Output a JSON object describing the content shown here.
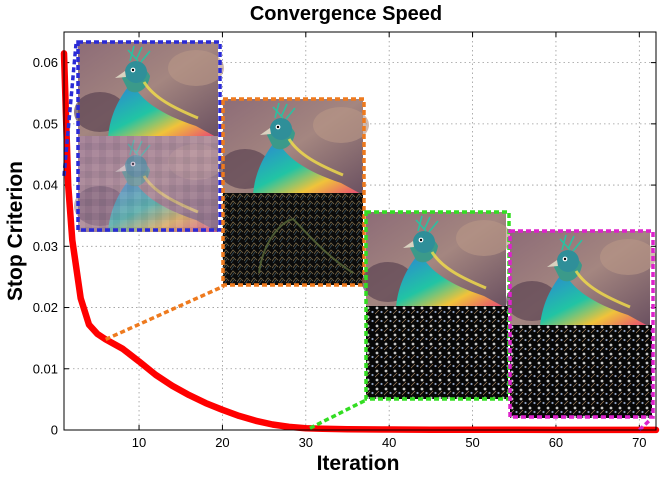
{
  "chart_data": {
    "type": "line",
    "title": "Convergence Speed",
    "xlabel": "Iteration",
    "ylabel": "Stop Criterion",
    "xlim": [
      1,
      72
    ],
    "ylim": [
      0,
      0.065
    ],
    "grid": true,
    "x_ticks": [
      10,
      20,
      30,
      40,
      50,
      60,
      70
    ],
    "x_tick_labels": [
      "10",
      "20",
      "30",
      "40",
      "50",
      "60",
      "70"
    ],
    "y_ticks": [
      0,
      0.01,
      0.02,
      0.03,
      0.04,
      0.05,
      0.06
    ],
    "y_tick_labels": [
      "0",
      "0.01",
      "0.02",
      "0.03",
      "0.04",
      "0.05",
      "0.06"
    ],
    "series": [
      {
        "name": "stop-criterion",
        "color": "#ff0000",
        "x": [
          1,
          1.5,
          2,
          3,
          4,
          5,
          6,
          8,
          10,
          12,
          14,
          16,
          18,
          20,
          22,
          24,
          26,
          28,
          30,
          32,
          35,
          40,
          45,
          50,
          55,
          60,
          65,
          70,
          72
        ],
        "y": [
          0.0615,
          0.04,
          0.031,
          0.0215,
          0.0172,
          0.0157,
          0.0148,
          0.0133,
          0.0112,
          0.009,
          0.0072,
          0.0057,
          0.0044,
          0.0033,
          0.0023,
          0.0015,
          0.0009,
          0.0005,
          0.0003,
          0.0002,
          0.00012,
          8e-05,
          5e-05,
          4e-05,
          3e-05,
          2e-05,
          2e-05,
          1e-05,
          1e-05
        ]
      }
    ],
    "insets": [
      {
        "name": "inset-iteration-1",
        "anchor_x": 1,
        "anchor_y": 0.0415,
        "border_color": "#2a2ad6",
        "connector_color": "#2a2ad6"
      },
      {
        "name": "inset-iteration-6",
        "anchor_x": 6,
        "anchor_y": 0.0148,
        "border_color": "#ee7a1e",
        "connector_color": "#ee7a1e"
      },
      {
        "name": "inset-iteration-30",
        "anchor_x": 30.5,
        "anchor_y": 0.0003,
        "border_color": "#33dd22",
        "connector_color": "#33dd22"
      },
      {
        "name": "inset-iteration-70",
        "anchor_x": 70,
        "anchor_y": 1e-05,
        "border_color": "#dd22cc",
        "connector_color": "#dd22cc"
      }
    ]
  }
}
